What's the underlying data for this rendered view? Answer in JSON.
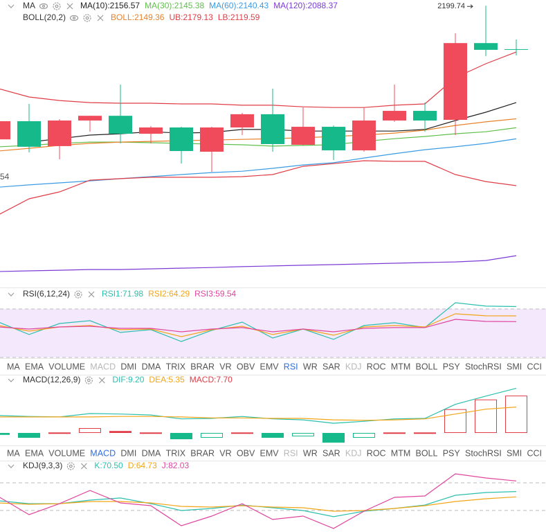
{
  "chart_data": [
    {
      "type": "candlestick",
      "edge_label": "54",
      "open": [
        2140.2,
        2148.3,
        2137.2,
        2148.6,
        2150.7,
        2142.7,
        2145.5,
        2134.7,
        2145.5,
        2151.4,
        2137.8,
        2145.8,
        2135.3,
        2148.6,
        2152.9,
        2148.9,
        2183.1,
        2180.4
      ],
      "high": [
        2148.3,
        2156.0,
        2149.2,
        2150.7,
        2164.6,
        2146.1,
        2145.8,
        2145.8,
        2152.0,
        2162.8,
        2154.4,
        2146.4,
        2154.4,
        2164.6,
        2156.6,
        2187.5,
        2199.74,
        2184.7
      ],
      "low": [
        2140.2,
        2134.4,
        2131.3,
        2143.6,
        2138.4,
        2138.4,
        2129.4,
        2125.7,
        2142.1,
        2134.7,
        2137.5,
        2131.0,
        2134.7,
        2148.0,
        2143.6,
        2142.1,
        2177.3,
        2177.6
      ],
      "close": [
        2148.3,
        2136.9,
        2148.6,
        2150.7,
        2142.7,
        2145.5,
        2135.0,
        2145.5,
        2151.4,
        2138.1,
        2145.8,
        2135.3,
        2148.6,
        2152.9,
        2148.6,
        2183.1,
        2180.1,
        2180.1
      ],
      "up_color": "#f04b5b",
      "down_color": "#16b98a",
      "ylim": [
        2074.2,
        2202.3
      ],
      "groups": [
        {
          "title": "MA",
          "series": [
            {
              "name": "MA(10):2156.57",
              "color": "#222222",
              "values": [
                null,
                2139.0,
                2140.5,
                2142.1,
                2142.7,
                2143.6,
                2143.0,
                2143.3,
                2144.6,
                2144.6,
                2143.9,
                2143.9,
                2143.9,
                2143.9,
                2144.6,
                2148.6,
                2152.3,
                2156.57
              ]
            },
            {
              "name": "MA(30):2145.38",
              "color": "#5fbf4a",
              "values": [
                2136.9,
                2137.5,
                2138.4,
                2139.0,
                2139.0,
                2138.7,
                2138.4,
                2138.1,
                2137.8,
                2137.2,
                2137.5,
                2137.8,
                2139.3,
                2140.5,
                2141.5,
                2142.7,
                2143.6,
                2145.38
              ]
            },
            {
              "name": "MA(60):2140.43",
              "color": "#3a9be3",
              "values": [
                2118.9,
                2119.9,
                2120.8,
                2121.7,
                2122.7,
                2123.6,
                2124.5,
                2125.4,
                2126.0,
                2127.3,
                2128.8,
                2129.8,
                2131.9,
                2133.8,
                2135.6,
                2136.9,
                2138.4,
                2140.43
              ]
            },
            {
              "name": "MA(120):2088.37",
              "color": "#7b3ad6",
              "values": [
                2081.3,
                2081.6,
                2081.9,
                2082.2,
                2082.2,
                2082.5,
                2082.8,
                2083.1,
                2083.5,
                2083.8,
                2084.1,
                2084.4,
                2084.7,
                2085.0,
                2085.3,
                2085.6,
                2086.2,
                2088.37
              ]
            }
          ]
        },
        {
          "title": "BOLL(20,2)",
          "series": [
            {
              "name": "BOLL:2149.36",
              "color": "#e8822a",
              "values": [
                2135.0,
                2136.2,
                2137.5,
                2138.4,
                2139.0,
                2139.3,
                2139.6,
                2139.9,
                2140.2,
                2140.5,
                2140.9,
                2141.5,
                2142.1,
                2143.0,
                2144.3,
                2146.4,
                2148.0,
                2149.36
              ]
            },
            {
              "name": "UB:2179.13",
              "color": "#e03c46",
              "values": [
                2162.8,
                2159.1,
                2157.5,
                2156.6,
                2156.3,
                2156.3,
                2156.0,
                2156.0,
                2155.4,
                2155.4,
                2154.7,
                2154.4,
                2154.4,
                2155.4,
                2156.0,
                2167.7,
                2173.9,
                2179.13
              ]
            },
            {
              "name": "LB:2119.59",
              "color": "#e03c46",
              "values": [
                2106.6,
                2113.7,
                2116.8,
                2122.0,
                2122.7,
                2123.3,
                2123.3,
                2123.3,
                2123.6,
                2124.5,
                2128.2,
                2129.4,
                2130.7,
                2130.4,
                2130.4,
                2124.5,
                2121.4,
                2119.59
              ]
            }
          ]
        }
      ]
    },
    {
      "type": "line",
      "title": "RSI(6,12,24)",
      "ylim": [
        29.4,
        75.7
      ],
      "band": [
        30,
        70
      ],
      "band_color": "#f4e8fc",
      "series": [
        {
          "name": "RSI1:71.98",
          "color": "#2bbfae",
          "values": [
            59.1,
            48.9,
            58.0,
            60.3,
            50.6,
            52.9,
            43.1,
            52.3,
            59.1,
            46.0,
            53.4,
            44.9,
            56.3,
            58.6,
            54.6,
            75.1,
            72.3,
            71.98
          ]
        },
        {
          "name": "RSI2:64.29",
          "color": "#f2a516",
          "values": [
            56.3,
            51.7,
            55.1,
            56.3,
            52.9,
            53.4,
            47.1,
            52.9,
            55.7,
            48.9,
            53.4,
            48.3,
            55.1,
            56.3,
            55.1,
            66.0,
            64.3,
            64.29
          ]
        },
        {
          "name": "RSI3:59.54",
          "color": "#e0449e",
          "values": [
            55.1,
            53.4,
            55.1,
            55.7,
            54.0,
            54.0,
            51.1,
            53.4,
            54.6,
            51.1,
            53.4,
            51.1,
            54.0,
            54.6,
            54.6,
            61.4,
            59.7,
            59.54
          ]
        }
      ]
    },
    {
      "type": "macd",
      "title": "MACD(12,26,9)",
      "ylim": [
        -2.86,
        9.86
      ],
      "up_color": "#e03c46",
      "down_color": "#16b98a",
      "series": [
        {
          "name": "DIF:9.20",
          "color": "#2bbfae",
          "values": [
            3.6,
            3.4,
            3.3,
            4.0,
            3.9,
            3.7,
            2.9,
            3.0,
            3.4,
            2.9,
            2.7,
            2.0,
            2.4,
            2.9,
            3.0,
            5.9,
            7.6,
            9.2
          ]
        },
        {
          "name": "DEA:5.35",
          "color": "#f2a516",
          "values": [
            3.3,
            3.3,
            3.3,
            3.3,
            3.4,
            3.4,
            3.3,
            3.1,
            3.1,
            3.0,
            3.0,
            2.7,
            2.6,
            2.7,
            2.9,
            3.9,
            4.9,
            5.35
          ]
        },
        {
          "name": "MACD:7.70",
          "color": "#e03c46",
          "values": [
            -0.4,
            -1.0,
            0.1,
            1.0,
            0.4,
            0.1,
            -1.3,
            -1.0,
            0.1,
            -1.0,
            -0.7,
            -2.0,
            -1.0,
            0.1,
            0.1,
            4.9,
            6.9,
            7.7
          ]
        }
      ]
    },
    {
      "type": "line",
      "title": "KDJ(9,3,3)",
      "ylim": [
        26.6,
        92.8
      ],
      "dashed": [
        80,
        50
      ],
      "series": [
        {
          "name": "K:70.50",
          "color": "#2bbfae",
          "values": [
            60.5,
            57.4,
            57.4,
            61.2,
            63.5,
            57.4,
            49.9,
            52.2,
            55.9,
            52.9,
            49.9,
            43.2,
            49.2,
            52.2,
            55.9,
            66.5,
            69.5,
            70.5
          ]
        },
        {
          "name": "D:64.73",
          "color": "#f2a516",
          "values": [
            58.2,
            56.7,
            57.4,
            59.7,
            59.7,
            58.2,
            54.4,
            53.7,
            55.2,
            53.7,
            52.9,
            49.2,
            49.9,
            52.2,
            55.2,
            59.7,
            62.7,
            64.73
          ]
        },
        {
          "name": "J:82.03",
          "color": "#e0449e",
          "values": [
            65.0,
            45.4,
            57.4,
            71.7,
            58.2,
            55.2,
            33.4,
            43.9,
            57.4,
            40.2,
            43.9,
            30.4,
            49.2,
            64.2,
            65.7,
            89.8,
            85.3,
            82.03
          ]
        }
      ]
    }
  ],
  "tabs": [
    "MA",
    "EMA",
    "VOLUME",
    "MACD",
    "DMI",
    "DMA",
    "TRIX",
    "BRAR",
    "VR",
    "OBV",
    "EMV",
    "RSI",
    "WR",
    "SAR",
    "KDJ",
    "ROC",
    "MTM",
    "BOLL",
    "PSY",
    "StochRSI",
    "SMI",
    "CCI"
  ],
  "tab_bars": [
    {
      "active": 11,
      "dimmed": [
        3,
        14
      ]
    },
    {
      "active": 3,
      "dimmed": [
        11,
        14
      ]
    }
  ]
}
